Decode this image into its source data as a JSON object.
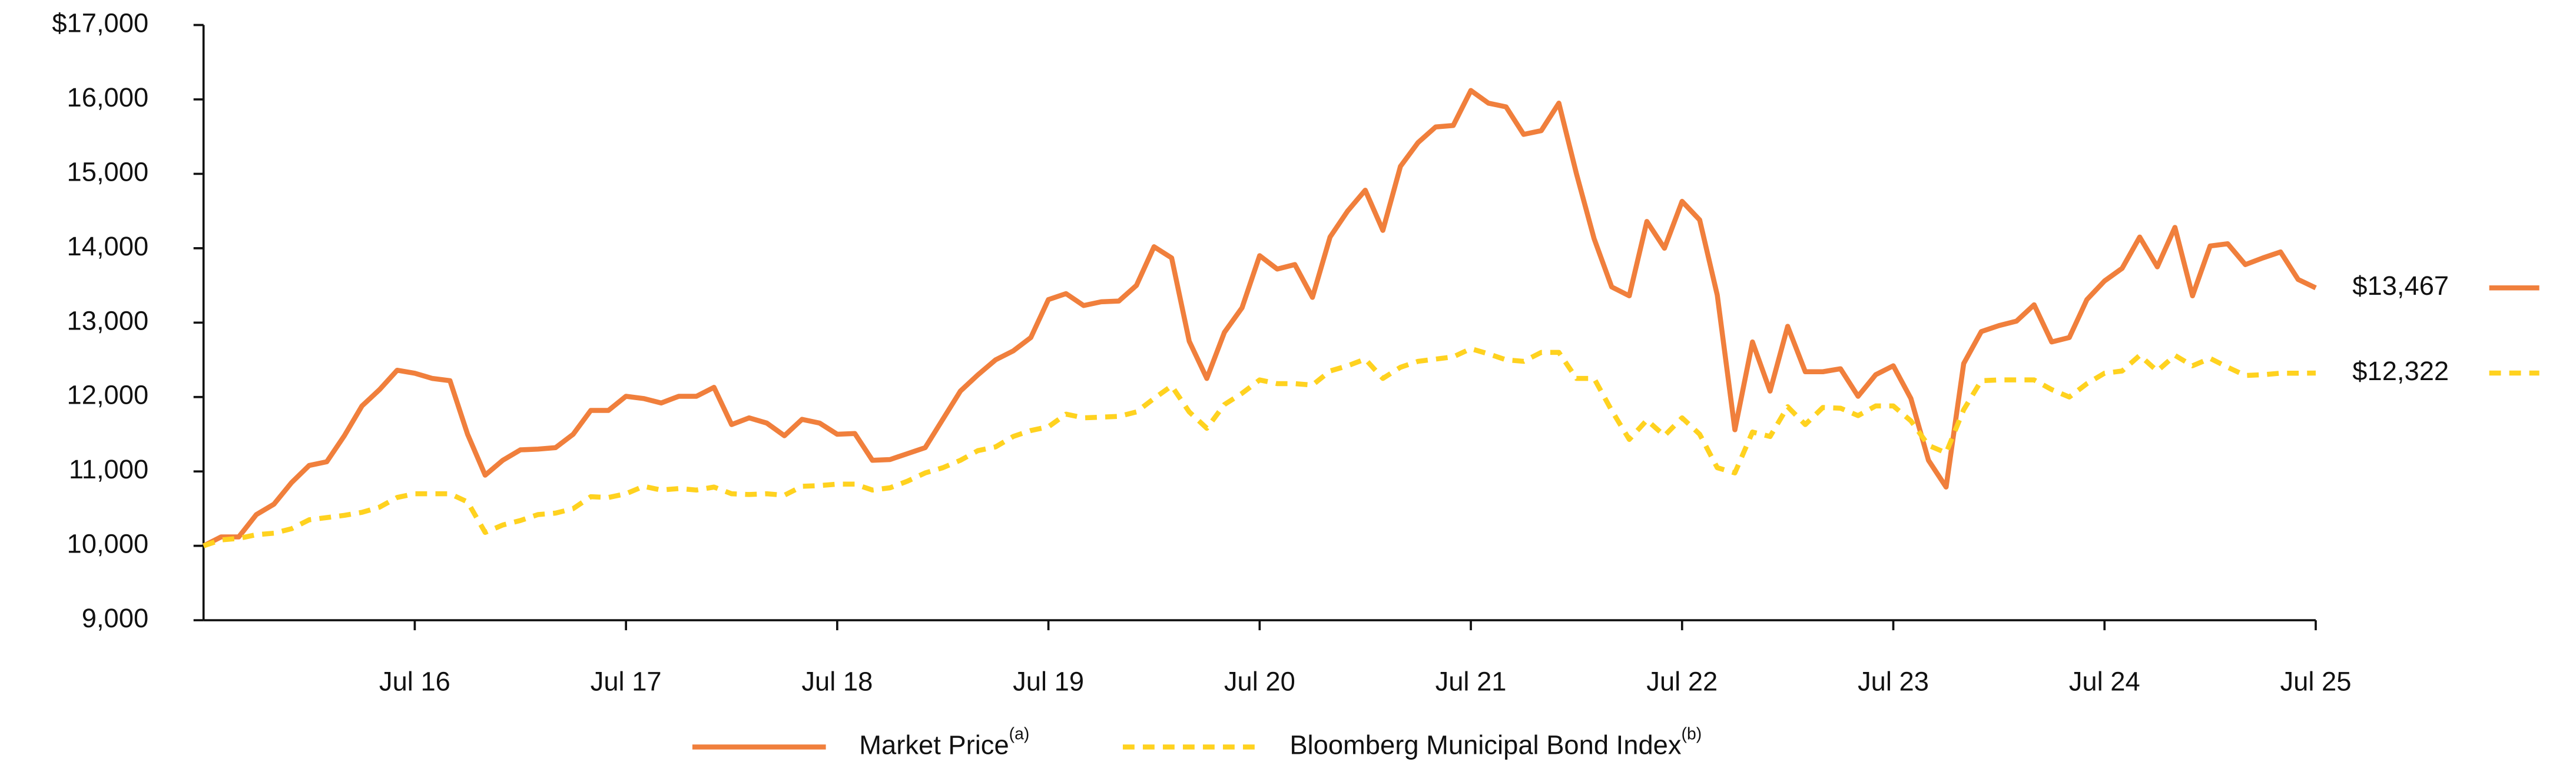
{
  "chart_data": {
    "type": "line",
    "categories": [
      null,
      null,
      null,
      null,
      null,
      null,
      null,
      null,
      null,
      null,
      null,
      null,
      "Jul 16",
      null,
      null,
      null,
      null,
      null,
      null,
      null,
      null,
      null,
      null,
      null,
      "Jul 17",
      null,
      null,
      null,
      null,
      null,
      null,
      null,
      null,
      null,
      null,
      null,
      "Jul 18",
      null,
      null,
      null,
      null,
      null,
      null,
      null,
      null,
      null,
      null,
      null,
      "Jul 19",
      null,
      null,
      null,
      null,
      null,
      null,
      null,
      null,
      null,
      null,
      null,
      "Jul 20",
      null,
      null,
      null,
      null,
      null,
      null,
      null,
      null,
      null,
      null,
      null,
      "Jul 21",
      null,
      null,
      null,
      null,
      null,
      null,
      null,
      null,
      null,
      null,
      null,
      "Jul 22",
      null,
      null,
      null,
      null,
      null,
      null,
      null,
      null,
      null,
      null,
      null,
      "Jul 23",
      null,
      null,
      null,
      null,
      null,
      null,
      null,
      null,
      null,
      null,
      null,
      "Jul 24",
      null,
      null,
      null,
      null,
      null,
      null,
      null,
      null,
      null,
      null,
      null,
      "Jul 25"
    ],
    "series": [
      {
        "name": "Market Price",
        "name_note": "(a)",
        "color": "#f07f3c",
        "dash": false,
        "end_label": "$13,467",
        "values": [
          10000,
          10120,
          10120,
          10420,
          10560,
          10850,
          11080,
          11130,
          11480,
          11880,
          12100,
          12360,
          12320,
          12250,
          12220,
          11500,
          10950,
          11150,
          11290,
          11300,
          11320,
          11500,
          11820,
          11820,
          12010,
          11980,
          11920,
          12010,
          12010,
          12130,
          11630,
          11720,
          11650,
          11480,
          11700,
          11650,
          11500,
          11510,
          11150,
          11160,
          11240,
          11320,
          11700,
          12080,
          12300,
          12500,
          12620,
          12800,
          13310,
          13390,
          13230,
          13280,
          13290,
          13500,
          14020,
          13870,
          12750,
          12250,
          12870,
          13200,
          13900,
          13720,
          13780,
          13340,
          14150,
          14500,
          14780,
          14240,
          15100,
          15420,
          15630,
          15650,
          16120,
          15950,
          15900,
          15530,
          15580,
          15950,
          15000,
          14130,
          13480,
          13360,
          14360,
          14000,
          14630,
          14380,
          13370,
          11560,
          12740,
          12080,
          12950,
          12340,
          12340,
          12380,
          12010,
          12300,
          12420,
          11980,
          11150,
          10790,
          12450,
          12880,
          12960,
          13020,
          13240,
          12740,
          12800,
          13310,
          13560,
          13730,
          14150,
          13750,
          14280,
          13360,
          14030,
          14060,
          13780,
          13870,
          13950,
          13580,
          13467
        ]
      },
      {
        "name": "Bloomberg Municipal Bond Index",
        "name_note": "(b)",
        "color": "#ffd21f",
        "dash": true,
        "end_label": "$12,322",
        "values": [
          10000,
          10080,
          10100,
          10150,
          10170,
          10230,
          10350,
          10380,
          10410,
          10450,
          10520,
          10650,
          10700,
          10700,
          10700,
          10590,
          10180,
          10280,
          10340,
          10420,
          10440,
          10500,
          10660,
          10650,
          10700,
          10800,
          10750,
          10770,
          10750,
          10790,
          10700,
          10690,
          10700,
          10680,
          10800,
          10810,
          10830,
          10830,
          10750,
          10780,
          10870,
          10980,
          11050,
          11150,
          11280,
          11330,
          11470,
          11550,
          11600,
          11770,
          11720,
          11730,
          11740,
          11800,
          11980,
          12150,
          11800,
          11580,
          11900,
          12050,
          12230,
          12180,
          12180,
          12160,
          12350,
          12420,
          12510,
          12250,
          12400,
          12480,
          12510,
          12540,
          12650,
          12580,
          12500,
          12480,
          12600,
          12600,
          12250,
          12250,
          11820,
          11430,
          11690,
          11480,
          11720,
          11500,
          11050,
          10980,
          11530,
          11470,
          11870,
          11630,
          11860,
          11850,
          11750,
          11880,
          11880,
          11680,
          11350,
          11250,
          11830,
          12220,
          12230,
          12230,
          12230,
          12100,
          12000,
          12180,
          12320,
          12350,
          12560,
          12350,
          12560,
          12420,
          12520,
          12400,
          12290,
          12300,
          12320,
          12320,
          12322
        ]
      }
    ],
    "ylim": [
      9000,
      17000
    ],
    "yticks": [
      {
        "value": 9000,
        "label": "9,000"
      },
      {
        "value": 10000,
        "label": "10,000"
      },
      {
        "value": 11000,
        "label": "11,000"
      },
      {
        "value": 12000,
        "label": "12,000"
      },
      {
        "value": 13000,
        "label": "13,000"
      },
      {
        "value": 14000,
        "label": "14,000"
      },
      {
        "value": 15000,
        "label": "15,000"
      },
      {
        "value": 16000,
        "label": "16,000"
      },
      {
        "value": 17000,
        "label": "$17,000"
      }
    ],
    "grid": false,
    "legend": "bottom"
  }
}
